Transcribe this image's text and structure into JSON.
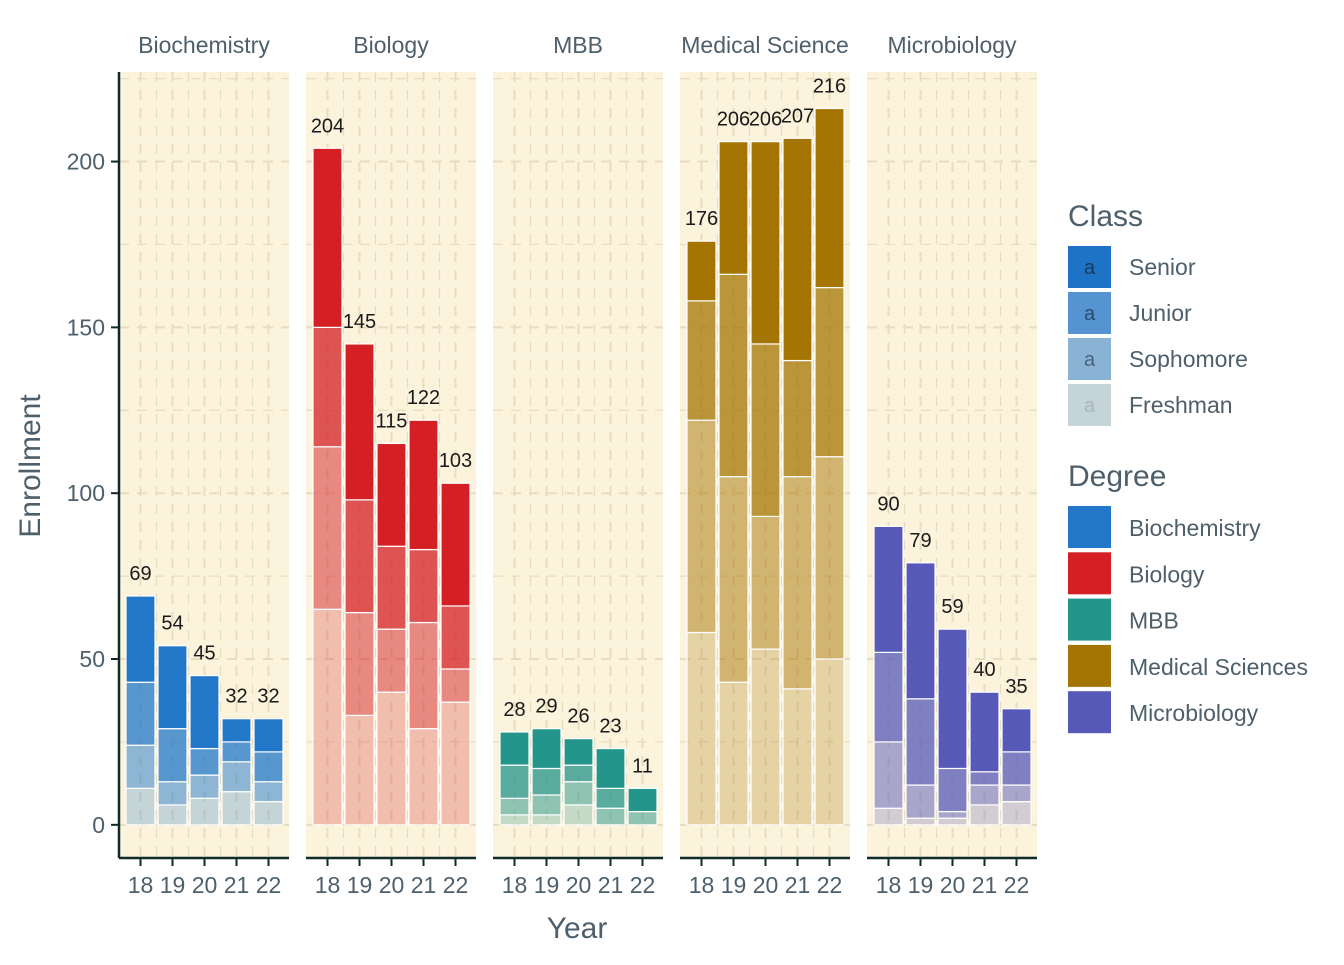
{
  "chart_data": {
    "type": "bar",
    "stacked": true,
    "faceted": true,
    "xlabel": "Year",
    "ylabel": "Enrollment",
    "ylim": [
      -10,
      227
    ],
    "yticks": [
      0,
      50,
      100,
      150,
      200
    ],
    "categories": [
      "18",
      "19",
      "20",
      "21",
      "22"
    ],
    "grid": "dashed major + minor",
    "panel_background": "#fbf3dc",
    "class_order_bottom_to_top": [
      "Freshman",
      "Sophomore",
      "Junior",
      "Senior"
    ],
    "class_alpha": {
      "Freshman": 0.25,
      "Sophomore": 0.5,
      "Junior": 0.75,
      "Senior": 1.0
    },
    "facets": [
      {
        "label": "Biochemistry",
        "color": "#2277c9",
        "totals": [
          69,
          54,
          45,
          32,
          32
        ],
        "series": [
          {
            "name": "Freshman",
            "values": [
              11,
              6,
              8,
              10,
              7
            ]
          },
          {
            "name": "Sophomore",
            "values": [
              13,
              7,
              7,
              9,
              6
            ]
          },
          {
            "name": "Junior",
            "values": [
              19,
              16,
              8,
              6,
              9
            ]
          },
          {
            "name": "Senior",
            "values": [
              26,
              25,
              22,
              7,
              10
            ]
          }
        ]
      },
      {
        "label": "Biology",
        "color": "#d41f25",
        "totals": [
          204,
          145,
          115,
          122,
          103
        ],
        "series": [
          {
            "name": "Freshman",
            "values": [
              65,
              33,
              40,
              29,
              37
            ]
          },
          {
            "name": "Sophomore",
            "values": [
              49,
              31,
              19,
              32,
              10
            ]
          },
          {
            "name": "Junior",
            "values": [
              36,
              34,
              25,
              22,
              19
            ]
          },
          {
            "name": "Senior",
            "values": [
              54,
              47,
              31,
              39,
              37
            ]
          }
        ]
      },
      {
        "label": "MBB",
        "color": "#24958a",
        "totals": [
          28,
          29,
          26,
          23,
          11
        ],
        "series": [
          {
            "name": "Freshman",
            "values": [
              3,
              3,
              6,
              0,
              0
            ]
          },
          {
            "name": "Sophomore",
            "values": [
              5,
              6,
              7,
              5,
              4
            ]
          },
          {
            "name": "Junior",
            "values": [
              10,
              8,
              5,
              6,
              0
            ]
          },
          {
            "name": "Senior",
            "values": [
              10,
              12,
              8,
              12,
              7
            ]
          }
        ]
      },
      {
        "label": "Medical Science",
        "color": "#a57503",
        "totals": [
          176,
          206,
          206,
          207,
          216
        ],
        "series": [
          {
            "name": "Freshman",
            "values": [
              58,
              43,
              53,
              41,
              50
            ]
          },
          {
            "name": "Sophomore",
            "values": [
              64,
              62,
              40,
              64,
              61
            ]
          },
          {
            "name": "Junior",
            "values": [
              36,
              61,
              52,
              35,
              51
            ]
          },
          {
            "name": "Senior",
            "values": [
              18,
              40,
              61,
              67,
              54
            ]
          }
        ]
      },
      {
        "label": "Microbiology",
        "color": "#5659b8",
        "totals": [
          90,
          79,
          59,
          40,
          35
        ],
        "series": [
          {
            "name": "Freshman",
            "values": [
              5,
              2,
              2,
              6,
              7
            ]
          },
          {
            "name": "Sophomore",
            "values": [
              20,
              10,
              2,
              6,
              5
            ]
          },
          {
            "name": "Junior",
            "values": [
              27,
              26,
              13,
              4,
              10
            ]
          },
          {
            "name": "Senior",
            "values": [
              38,
              41,
              42,
              24,
              13
            ]
          }
        ]
      }
    ],
    "legend_class": {
      "title": "Class",
      "placement": "right",
      "items": [
        {
          "label": "Senior",
          "key_letter": "a",
          "color": "#1f73c6",
          "text_color": "#1b3a5a"
        },
        {
          "label": "Junior",
          "key_letter": "a",
          "color": "#5594d0",
          "text_color": "#2a4b6e"
        },
        {
          "label": "Sophomore",
          "key_letter": "a",
          "color": "#8ab2d5",
          "text_color": "#48627c"
        },
        {
          "label": "Freshman",
          "key_letter": "a",
          "color": "#c5d4d8",
          "text_color": "#a9b6bc"
        }
      ]
    },
    "legend_degree": {
      "title": "Degree",
      "placement": "right",
      "items": [
        {
          "label": "Biochemistry",
          "color": "#2277c9"
        },
        {
          "label": "Biology",
          "color": "#d41f25"
        },
        {
          "label": "MBB",
          "color": "#24958a"
        },
        {
          "label": "Medical Sciences",
          "color": "#a57503"
        },
        {
          "label": "Microbiology",
          "color": "#5659b8"
        }
      ]
    },
    "colors": {
      "text": "#4d5f6b",
      "label_text": "#1a1a1a",
      "axis_line": "#0f2a2a",
      "grid": "#e8dcbf"
    }
  }
}
